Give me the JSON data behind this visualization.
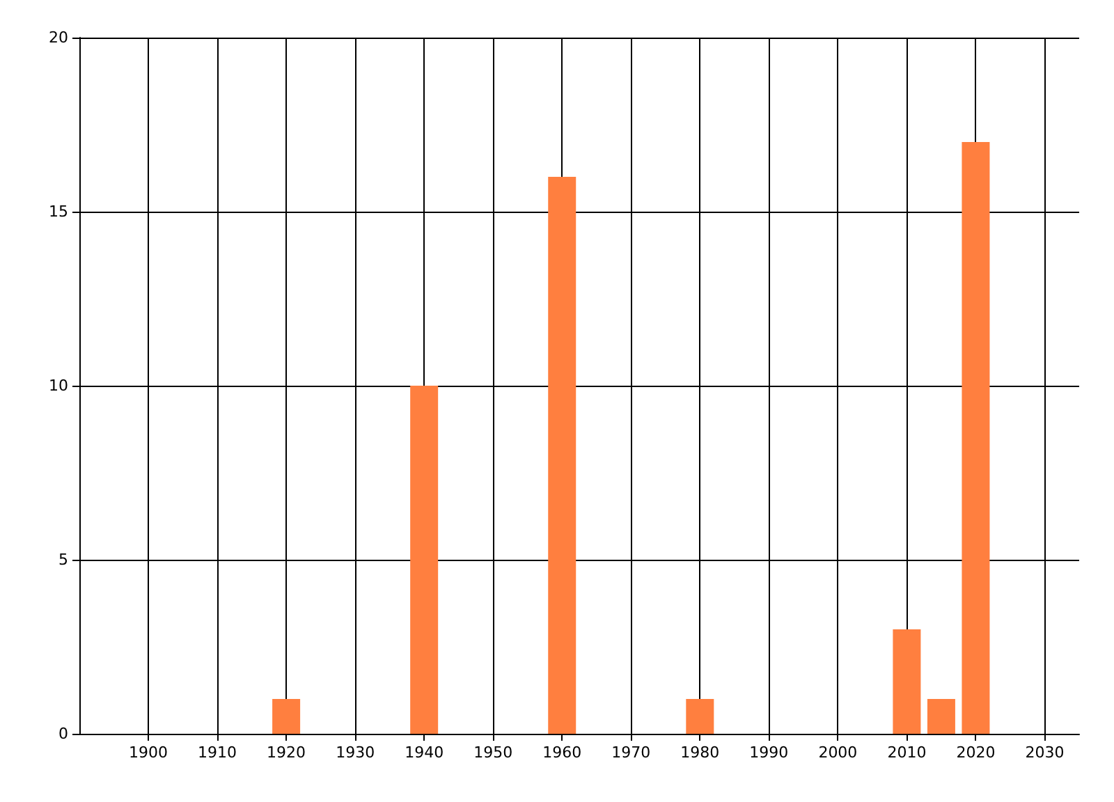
{
  "chart_data": {
    "type": "bar",
    "x": [
      1920,
      1940,
      1960,
      1980,
      2010,
      2015,
      2020
    ],
    "values": [
      1,
      10,
      16,
      1,
      3,
      1,
      17
    ],
    "color": "#ff7f3f",
    "xlim": [
      1890,
      2035
    ],
    "xticks": [
      1900,
      1910,
      1920,
      1930,
      1940,
      1950,
      1960,
      1970,
      1980,
      1990,
      2000,
      2010,
      2020,
      2030
    ],
    "ylim": [
      0,
      20
    ],
    "yticks": [
      0,
      5,
      10,
      15,
      20
    ],
    "grid": true
  }
}
